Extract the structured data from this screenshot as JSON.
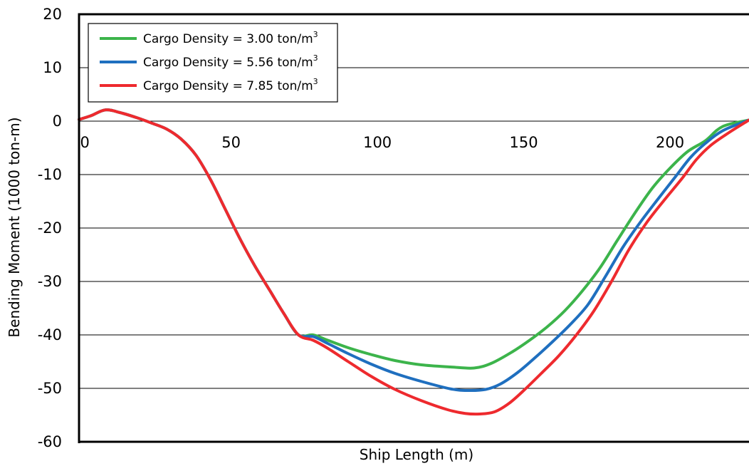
{
  "chart_data": {
    "type": "line",
    "title": "",
    "xlabel": "Ship Length (m)",
    "ylabel": "Bending Moment (1000 ton-m)",
    "xlim": [
      -2,
      227
    ],
    "ylim": [
      -60,
      20
    ],
    "x_ticks": [
      0,
      50,
      100,
      150,
      200
    ],
    "x_tick_labels": [
      "0",
      "50",
      "100",
      "150",
      "200"
    ],
    "y_ticks": [
      20,
      10,
      0,
      -10,
      -20,
      -30,
      -40,
      -50,
      -60
    ],
    "y_tick_labels": [
      "20",
      "10",
      "0",
      "-10",
      "-20",
      "-30",
      "-40",
      "-50",
      "-60"
    ],
    "grid": true,
    "legend_position": "top-left",
    "series": [
      {
        "name": "Cargo Density = 3.00 ton/m",
        "name_superscript": "3",
        "color": "#3cb44b",
        "x": [
          -2,
          2,
          7,
          12,
          18,
          23,
          28,
          33,
          38,
          43,
          48,
          53,
          58,
          63,
          68,
          73,
          78,
          83,
          90,
          98,
          106,
          115,
          125,
          133,
          139,
          146,
          152,
          158,
          164,
          170,
          176,
          182,
          188,
          194,
          200,
          206,
          212,
          218,
          227
        ],
        "y": [
          0.3,
          1.0,
          2.1,
          1.6,
          0.6,
          -0.4,
          -1.5,
          -3.4,
          -6.4,
          -11.0,
          -16.5,
          -22.0,
          -27.0,
          -31.5,
          -36.0,
          -40.0,
          -40.0,
          -41.0,
          -42.4,
          -43.7,
          -44.8,
          -45.6,
          -46.0,
          -46.2,
          -45.3,
          -43.2,
          -41.0,
          -38.5,
          -35.5,
          -31.8,
          -27.5,
          -22.3,
          -17.2,
          -12.5,
          -8.8,
          -5.7,
          -3.7,
          -1.0,
          0.2
        ]
      },
      {
        "name": "Cargo Density = 5.56 ton/m",
        "name_superscript": "3",
        "color": "#1f6fbf",
        "x": [
          -2,
          2,
          7,
          12,
          18,
          23,
          28,
          33,
          38,
          43,
          48,
          53,
          58,
          63,
          68,
          73,
          78,
          83,
          90,
          98,
          106,
          115,
          125,
          131,
          137,
          142,
          148,
          154,
          160,
          166,
          172,
          178,
          184,
          190,
          196,
          202,
          207,
          212,
          218,
          227
        ],
        "y": [
          0.3,
          1.0,
          2.1,
          1.6,
          0.6,
          -0.4,
          -1.5,
          -3.4,
          -6.4,
          -11.0,
          -16.5,
          -22.0,
          -27.0,
          -31.5,
          -36.0,
          -40.0,
          -40.3,
          -41.6,
          -43.5,
          -45.5,
          -47.2,
          -48.7,
          -50.1,
          -50.4,
          -50.2,
          -49.2,
          -47.0,
          -44.2,
          -41.2,
          -38.0,
          -34.3,
          -29.0,
          -23.5,
          -18.8,
          -14.5,
          -10.3,
          -6.8,
          -4.2,
          -1.8,
          0.2
        ]
      },
      {
        "name": "Cargo Density = 7.85 ton/m",
        "name_superscript": "3",
        "color": "#ee2a2e",
        "x": [
          -2,
          2,
          7,
          12,
          18,
          23,
          28,
          33,
          38,
          43,
          48,
          53,
          58,
          63,
          68,
          73,
          78,
          83,
          90,
          98,
          106,
          115,
          124,
          130,
          135,
          140,
          145,
          150,
          156,
          162,
          168,
          174,
          180,
          186,
          192,
          198,
          204,
          209,
          214,
          220,
          227
        ],
        "y": [
          0.3,
          1.0,
          2.1,
          1.6,
          0.6,
          -0.4,
          -1.5,
          -3.4,
          -6.4,
          -11.0,
          -16.5,
          -22.0,
          -27.0,
          -31.5,
          -36.0,
          -40.0,
          -41.0,
          -42.5,
          -45.0,
          -47.8,
          -50.2,
          -52.3,
          -54.0,
          -54.7,
          -54.8,
          -54.4,
          -52.8,
          -50.4,
          -47.2,
          -43.9,
          -40.0,
          -35.5,
          -30.0,
          -24.0,
          -19.0,
          -14.8,
          -10.8,
          -7.2,
          -4.5,
          -2.2,
          0.2
        ]
      }
    ]
  }
}
